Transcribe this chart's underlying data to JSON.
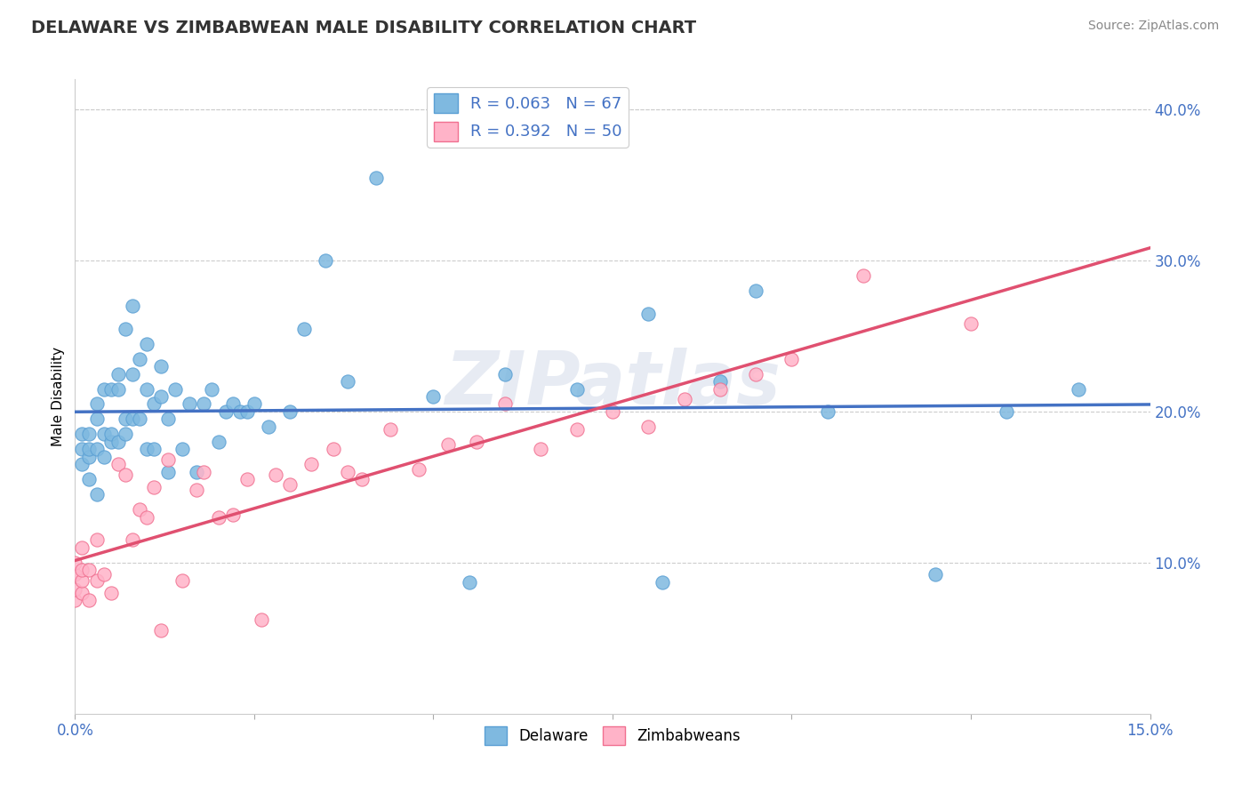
{
  "title": "DELAWARE VS ZIMBABWEAN MALE DISABILITY CORRELATION CHART",
  "source": "Source: ZipAtlas.com",
  "ylabel": "Male Disability",
  "xlim": [
    0.0,
    0.15
  ],
  "ylim": [
    0.0,
    0.42
  ],
  "delaware_color": "#7fb9e0",
  "delaware_edge": "#5a9fd4",
  "zimbabwe_color": "#ffb3c8",
  "zimbabwe_edge": "#f07090",
  "delaware_R": 0.063,
  "delaware_N": 67,
  "zimbabwe_R": 0.392,
  "zimbabwe_N": 50,
  "title_fontsize": 14,
  "watermark": "ZIPatlas",
  "delaware_x": [
    0.001,
    0.001,
    0.001,
    0.002,
    0.002,
    0.002,
    0.002,
    0.003,
    0.003,
    0.003,
    0.003,
    0.004,
    0.004,
    0.004,
    0.005,
    0.005,
    0.005,
    0.006,
    0.006,
    0.006,
    0.007,
    0.007,
    0.007,
    0.008,
    0.008,
    0.008,
    0.009,
    0.009,
    0.01,
    0.01,
    0.01,
    0.011,
    0.011,
    0.012,
    0.012,
    0.013,
    0.013,
    0.014,
    0.015,
    0.016,
    0.017,
    0.018,
    0.019,
    0.02,
    0.021,
    0.022,
    0.023,
    0.024,
    0.025,
    0.027,
    0.03,
    0.032,
    0.035,
    0.038,
    0.042,
    0.05,
    0.055,
    0.06,
    0.07,
    0.08,
    0.082,
    0.09,
    0.095,
    0.105,
    0.12,
    0.13,
    0.14
  ],
  "delaware_y": [
    0.165,
    0.175,
    0.185,
    0.155,
    0.17,
    0.175,
    0.185,
    0.145,
    0.175,
    0.195,
    0.205,
    0.17,
    0.185,
    0.215,
    0.18,
    0.185,
    0.215,
    0.18,
    0.215,
    0.225,
    0.185,
    0.195,
    0.255,
    0.195,
    0.225,
    0.27,
    0.195,
    0.235,
    0.175,
    0.215,
    0.245,
    0.175,
    0.205,
    0.21,
    0.23,
    0.16,
    0.195,
    0.215,
    0.175,
    0.205,
    0.16,
    0.205,
    0.215,
    0.18,
    0.2,
    0.205,
    0.2,
    0.2,
    0.205,
    0.19,
    0.2,
    0.255,
    0.3,
    0.22,
    0.355,
    0.21,
    0.087,
    0.225,
    0.215,
    0.265,
    0.087,
    0.22,
    0.28,
    0.2,
    0.092,
    0.2,
    0.215
  ],
  "zimbabwe_x": [
    0.0,
    0.0,
    0.0,
    0.0,
    0.001,
    0.001,
    0.001,
    0.001,
    0.002,
    0.002,
    0.003,
    0.003,
    0.004,
    0.005,
    0.006,
    0.007,
    0.008,
    0.009,
    0.01,
    0.011,
    0.012,
    0.013,
    0.015,
    0.017,
    0.018,
    0.02,
    0.022,
    0.024,
    0.026,
    0.028,
    0.03,
    0.033,
    0.036,
    0.038,
    0.04,
    0.044,
    0.048,
    0.052,
    0.056,
    0.06,
    0.065,
    0.07,
    0.075,
    0.08,
    0.085,
    0.09,
    0.095,
    0.1,
    0.11,
    0.125
  ],
  "zimbabwe_y": [
    0.075,
    0.082,
    0.092,
    0.1,
    0.08,
    0.088,
    0.095,
    0.11,
    0.075,
    0.095,
    0.088,
    0.115,
    0.092,
    0.08,
    0.165,
    0.158,
    0.115,
    0.135,
    0.13,
    0.15,
    0.055,
    0.168,
    0.088,
    0.148,
    0.16,
    0.13,
    0.132,
    0.155,
    0.062,
    0.158,
    0.152,
    0.165,
    0.175,
    0.16,
    0.155,
    0.188,
    0.162,
    0.178,
    0.18,
    0.205,
    0.175,
    0.188,
    0.2,
    0.19,
    0.208,
    0.215,
    0.225,
    0.235,
    0.29,
    0.258
  ]
}
